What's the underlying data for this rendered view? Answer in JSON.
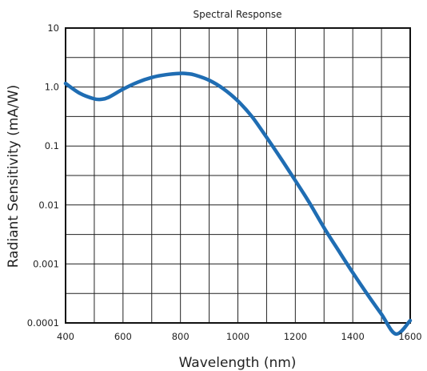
{
  "chart_data": {
    "type": "line",
    "title": "Spectral Response",
    "xlabel": "Wavelength (nm)",
    "ylabel": "Radiant Sensitivity (mA/W)",
    "x_scale": "linear",
    "y_scale": "log",
    "xlim": [
      400,
      1600
    ],
    "ylim": [
      0.0001,
      10
    ],
    "x_ticks": [
      400,
      600,
      800,
      1000,
      1200,
      1400,
      1600
    ],
    "x_tick_labels": [
      "400",
      "600",
      "800",
      "1000",
      "1200",
      "1400",
      "1600"
    ],
    "y_ticks": [
      0.0001,
      0.001,
      0.01,
      0.1,
      1,
      10
    ],
    "y_tick_labels": [
      "0.0001",
      "0.001",
      "0.01",
      "0.1",
      "1.0",
      "10"
    ],
    "grid": true,
    "legend": "none",
    "series": [
      {
        "color": "#1f6db3",
        "x": [
          400,
          450,
          500,
          525,
          550,
          600,
          650,
          700,
          750,
          800,
          825,
          850,
          900,
          950,
          1000,
          1050,
          1100,
          1150,
          1200,
          1250,
          1300,
          1350,
          1400,
          1450,
          1500,
          1550,
          1600
        ],
        "y": [
          1.15,
          0.78,
          0.63,
          0.62,
          0.67,
          0.92,
          1.2,
          1.45,
          1.62,
          1.7,
          1.68,
          1.6,
          1.3,
          0.93,
          0.58,
          0.31,
          0.14,
          0.061,
          0.026,
          0.0107,
          0.0041,
          0.0017,
          0.00071,
          0.00031,
          0.00014,
          6.5e-05,
          0.00011
        ]
      }
    ]
  }
}
